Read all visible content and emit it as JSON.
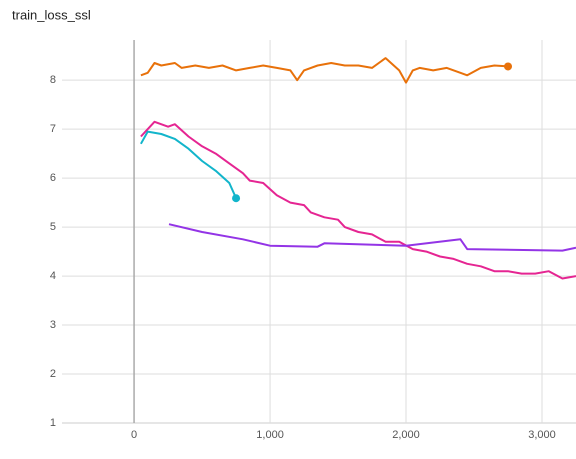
{
  "chart_data": {
    "type": "line",
    "title": "train_loss_ssl",
    "xlim": [
      -530,
      3250
    ],
    "ylim": [
      1,
      8.82
    ],
    "xticks": [
      0,
      {
        "value": 1000,
        "label": "1,000"
      },
      {
        "value": 2000,
        "label": "2,000"
      },
      {
        "value": 3000,
        "label": "3,000"
      }
    ],
    "yticks": [
      1,
      2,
      3,
      4,
      5,
      6,
      7,
      8
    ],
    "grid": true,
    "series": [
      {
        "color": "#e8710a",
        "end_dot": true,
        "x": [
          50,
          100,
          150,
          200,
          300,
          350,
          450,
          550,
          650,
          750,
          850,
          950,
          1050,
          1150,
          1200,
          1250,
          1350,
          1450,
          1550,
          1650,
          1750,
          1850,
          1950,
          2000,
          2050,
          2100,
          2200,
          2300,
          2400,
          2450,
          2550,
          2650,
          2750
        ],
        "values": [
          8.1,
          8.15,
          8.35,
          8.3,
          8.35,
          8.25,
          8.3,
          8.25,
          8.3,
          8.2,
          8.25,
          8.3,
          8.25,
          8.2,
          8.0,
          8.2,
          8.3,
          8.35,
          8.3,
          8.3,
          8.25,
          8.45,
          8.2,
          7.95,
          8.2,
          8.25,
          8.2,
          8.25,
          8.15,
          8.1,
          8.25,
          8.3,
          8.28
        ]
      },
      {
        "color": "#e52592",
        "end_dot": false,
        "x": [
          50,
          150,
          250,
          300,
          400,
          500,
          600,
          700,
          800,
          850,
          950,
          1050,
          1150,
          1250,
          1300,
          1400,
          1500,
          1550,
          1650,
          1750,
          1850,
          1950,
          2050,
          2150,
          2250,
          2350,
          2450,
          2550,
          2650,
          2750,
          2850,
          2950,
          3050,
          3150,
          3250
        ],
        "values": [
          6.85,
          7.15,
          7.05,
          7.1,
          6.85,
          6.65,
          6.5,
          6.3,
          6.1,
          5.95,
          5.9,
          5.65,
          5.5,
          5.45,
          5.3,
          5.2,
          5.15,
          5.0,
          4.9,
          4.85,
          4.7,
          4.7,
          4.55,
          4.5,
          4.4,
          4.35,
          4.25,
          4.2,
          4.1,
          4.1,
          4.05,
          4.05,
          4.1,
          3.95,
          4.0
        ]
      },
      {
        "color": "#12b5cb",
        "end_dot": true,
        "x": [
          50,
          100,
          200,
          300,
          400,
          500,
          600,
          700,
          750
        ],
        "values": [
          6.7,
          6.95,
          6.9,
          6.8,
          6.6,
          6.35,
          6.15,
          5.9,
          5.59
        ]
      },
      {
        "color": "#9334e6",
        "end_dot": false,
        "x": [
          257,
          500,
          800,
          1000,
          1350,
          1400,
          2000,
          2400,
          2450,
          3150,
          3250
        ],
        "values": [
          5.06,
          4.9,
          4.75,
          4.62,
          4.6,
          4.67,
          4.62,
          4.75,
          4.55,
          4.52,
          4.58
        ]
      }
    ]
  }
}
